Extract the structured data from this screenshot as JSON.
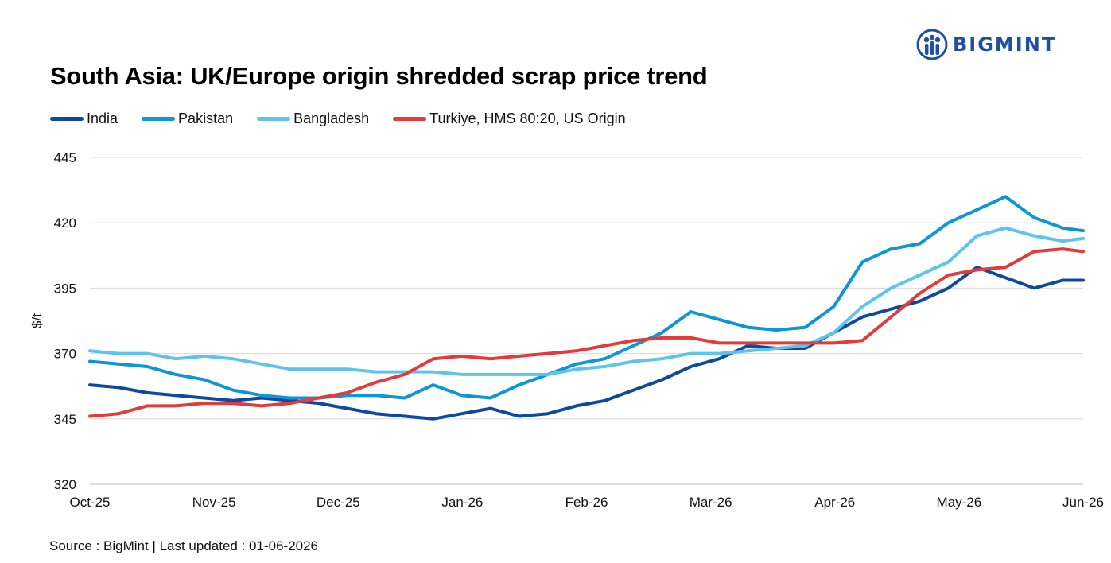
{
  "brand": {
    "name": "BIGMINT",
    "color": "#1f4fa0",
    "icon": "people-logo-icon"
  },
  "header": {
    "title": "South Asia: UK/Europe origin shredded scrap price trend"
  },
  "footer": {
    "source": "Source : BigMint | Last updated : 01-06-2026"
  },
  "chart_data": {
    "type": "line",
    "title": "South Asia: UK/Europe origin shredded scrap price trend",
    "xlabel": "",
    "ylabel": "$/t",
    "x_tick_labels": [
      "Oct-25",
      "Nov-25",
      "Dec-25",
      "Jan-26",
      "Feb-26",
      "Mar-26",
      "Apr-26",
      "May-26",
      "Jun-26"
    ],
    "x_range": [
      "2025-10-01",
      "2026-06-01"
    ],
    "ylim": [
      320,
      445
    ],
    "yticks": [
      320,
      345,
      370,
      395,
      420,
      445
    ],
    "grid": "horizontal",
    "legend_position": "top-left",
    "series": [
      {
        "name": "India",
        "color": "#0d4a9e",
        "points": [
          [
            "2025-10-01",
            358
          ],
          [
            "2025-10-08",
            357
          ],
          [
            "2025-10-15",
            355
          ],
          [
            "2025-10-22",
            354
          ],
          [
            "2025-10-29",
            353
          ],
          [
            "2025-11-05",
            352
          ],
          [
            "2025-11-12",
            353
          ],
          [
            "2025-11-19",
            352
          ],
          [
            "2025-11-26",
            351
          ],
          [
            "2025-12-03",
            349
          ],
          [
            "2025-12-10",
            347
          ],
          [
            "2025-12-17",
            346
          ],
          [
            "2025-12-24",
            345
          ],
          [
            "2025-12-31",
            347
          ],
          [
            "2026-01-07",
            349
          ],
          [
            "2026-01-14",
            346
          ],
          [
            "2026-01-21",
            347
          ],
          [
            "2026-01-28",
            350
          ],
          [
            "2026-02-04",
            352
          ],
          [
            "2026-02-11",
            356
          ],
          [
            "2026-02-18",
            360
          ],
          [
            "2026-02-25",
            365
          ],
          [
            "2026-03-04",
            368
          ],
          [
            "2026-03-11",
            373
          ],
          [
            "2026-03-18",
            372
          ],
          [
            "2026-03-25",
            372
          ],
          [
            "2026-04-01",
            378
          ],
          [
            "2026-04-08",
            384
          ],
          [
            "2026-04-15",
            387
          ],
          [
            "2026-04-22",
            390
          ],
          [
            "2026-04-29",
            395
          ],
          [
            "2026-05-06",
            403
          ],
          [
            "2026-05-13",
            399
          ],
          [
            "2026-05-20",
            395
          ],
          [
            "2026-05-27",
            398
          ],
          [
            "2026-06-01",
            398
          ]
        ]
      },
      {
        "name": "Pakistan",
        "color": "#0d96d4",
        "points": [
          [
            "2025-10-01",
            367
          ],
          [
            "2025-10-08",
            366
          ],
          [
            "2025-10-15",
            365
          ],
          [
            "2025-10-22",
            362
          ],
          [
            "2025-10-29",
            360
          ],
          [
            "2025-11-05",
            356
          ],
          [
            "2025-11-12",
            354
          ],
          [
            "2025-11-19",
            353
          ],
          [
            "2025-11-26",
            353
          ],
          [
            "2025-12-03",
            354
          ],
          [
            "2025-12-10",
            354
          ],
          [
            "2025-12-17",
            353
          ],
          [
            "2025-12-24",
            358
          ],
          [
            "2025-12-31",
            354
          ],
          [
            "2026-01-07",
            353
          ],
          [
            "2026-01-14",
            358
          ],
          [
            "2026-01-21",
            362
          ],
          [
            "2026-01-28",
            366
          ],
          [
            "2026-02-04",
            368
          ],
          [
            "2026-02-11",
            373
          ],
          [
            "2026-02-18",
            378
          ],
          [
            "2026-02-25",
            386
          ],
          [
            "2026-03-04",
            383
          ],
          [
            "2026-03-11",
            380
          ],
          [
            "2026-03-18",
            379
          ],
          [
            "2026-03-25",
            380
          ],
          [
            "2026-04-01",
            388
          ],
          [
            "2026-04-08",
            405
          ],
          [
            "2026-04-15",
            410
          ],
          [
            "2026-04-22",
            412
          ],
          [
            "2026-04-29",
            420
          ],
          [
            "2026-05-06",
            425
          ],
          [
            "2026-05-13",
            430
          ],
          [
            "2026-05-20",
            422
          ],
          [
            "2026-05-27",
            418
          ],
          [
            "2026-06-01",
            417
          ]
        ]
      },
      {
        "name": "Bangladesh",
        "color": "#5ec4ec",
        "points": [
          [
            "2025-10-01",
            371
          ],
          [
            "2025-10-08",
            370
          ],
          [
            "2025-10-15",
            370
          ],
          [
            "2025-10-22",
            368
          ],
          [
            "2025-10-29",
            369
          ],
          [
            "2025-11-05",
            368
          ],
          [
            "2025-11-12",
            366
          ],
          [
            "2025-11-19",
            364
          ],
          [
            "2025-11-26",
            364
          ],
          [
            "2025-12-03",
            364
          ],
          [
            "2025-12-10",
            363
          ],
          [
            "2025-12-17",
            363
          ],
          [
            "2025-12-24",
            363
          ],
          [
            "2025-12-31",
            362
          ],
          [
            "2026-01-07",
            362
          ],
          [
            "2026-01-14",
            362
          ],
          [
            "2026-01-21",
            362
          ],
          [
            "2026-01-28",
            364
          ],
          [
            "2026-02-04",
            365
          ],
          [
            "2026-02-11",
            367
          ],
          [
            "2026-02-18",
            368
          ],
          [
            "2026-02-25",
            370
          ],
          [
            "2026-03-04",
            370
          ],
          [
            "2026-03-11",
            371
          ],
          [
            "2026-03-18",
            372
          ],
          [
            "2026-03-25",
            373
          ],
          [
            "2026-04-01",
            378
          ],
          [
            "2026-04-08",
            388
          ],
          [
            "2026-04-15",
            395
          ],
          [
            "2026-04-22",
            400
          ],
          [
            "2026-04-29",
            405
          ],
          [
            "2026-05-06",
            415
          ],
          [
            "2026-05-13",
            418
          ],
          [
            "2026-05-20",
            415
          ],
          [
            "2026-05-27",
            413
          ],
          [
            "2026-06-01",
            414
          ]
        ]
      },
      {
        "name": "Turkiye, HMS 80:20, US Origin",
        "color": "#e13b3b",
        "points": [
          [
            "2025-10-01",
            346
          ],
          [
            "2025-10-08",
            347
          ],
          [
            "2025-10-15",
            350
          ],
          [
            "2025-10-22",
            350
          ],
          [
            "2025-10-29",
            351
          ],
          [
            "2025-11-05",
            351
          ],
          [
            "2025-11-12",
            350
          ],
          [
            "2025-11-19",
            351
          ],
          [
            "2025-11-26",
            353
          ],
          [
            "2025-12-03",
            355
          ],
          [
            "2025-12-10",
            359
          ],
          [
            "2025-12-17",
            362
          ],
          [
            "2025-12-24",
            368
          ],
          [
            "2025-12-31",
            369
          ],
          [
            "2026-01-07",
            368
          ],
          [
            "2026-01-14",
            369
          ],
          [
            "2026-01-21",
            370
          ],
          [
            "2026-01-28",
            371
          ],
          [
            "2026-02-04",
            373
          ],
          [
            "2026-02-11",
            375
          ],
          [
            "2026-02-18",
            376
          ],
          [
            "2026-02-25",
            376
          ],
          [
            "2026-03-04",
            374
          ],
          [
            "2026-03-11",
            374
          ],
          [
            "2026-03-18",
            374
          ],
          [
            "2026-03-25",
            374
          ],
          [
            "2026-04-01",
            374
          ],
          [
            "2026-04-08",
            375
          ],
          [
            "2026-04-15",
            384
          ],
          [
            "2026-04-22",
            393
          ],
          [
            "2026-04-29",
            400
          ],
          [
            "2026-05-06",
            402
          ],
          [
            "2026-05-13",
            403
          ],
          [
            "2026-05-20",
            409
          ],
          [
            "2026-05-27",
            410
          ],
          [
            "2026-06-01",
            409
          ]
        ]
      }
    ]
  }
}
